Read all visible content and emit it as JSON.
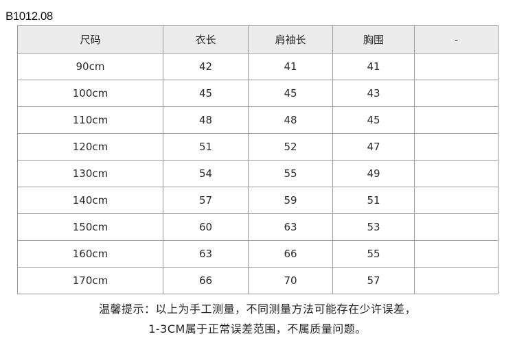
{
  "product_code": "B1012.08",
  "table": {
    "headers": [
      "尺码",
      "衣长",
      "肩袖长",
      "胸围",
      "-"
    ],
    "rows": [
      [
        "90cm",
        "42",
        "41",
        "41",
        ""
      ],
      [
        "100cm",
        "45",
        "45",
        "43",
        ""
      ],
      [
        "110cm",
        "48",
        "48",
        "45",
        ""
      ],
      [
        "120cm",
        "51",
        "52",
        "47",
        ""
      ],
      [
        "130cm",
        "54",
        "55",
        "49",
        ""
      ],
      [
        "140cm",
        "57",
        "59",
        "51",
        ""
      ],
      [
        "150cm",
        "60",
        "63",
        "53",
        ""
      ],
      [
        "160cm",
        "63",
        "66",
        "55",
        ""
      ],
      [
        "170cm",
        "66",
        "70",
        "57",
        ""
      ]
    ]
  },
  "note": {
    "line1": "温馨提示：以上为手工测量，不同测量方法可能存在少许误差，",
    "line2": "1-3CM属于正常误差范围，不属质量问题。"
  }
}
